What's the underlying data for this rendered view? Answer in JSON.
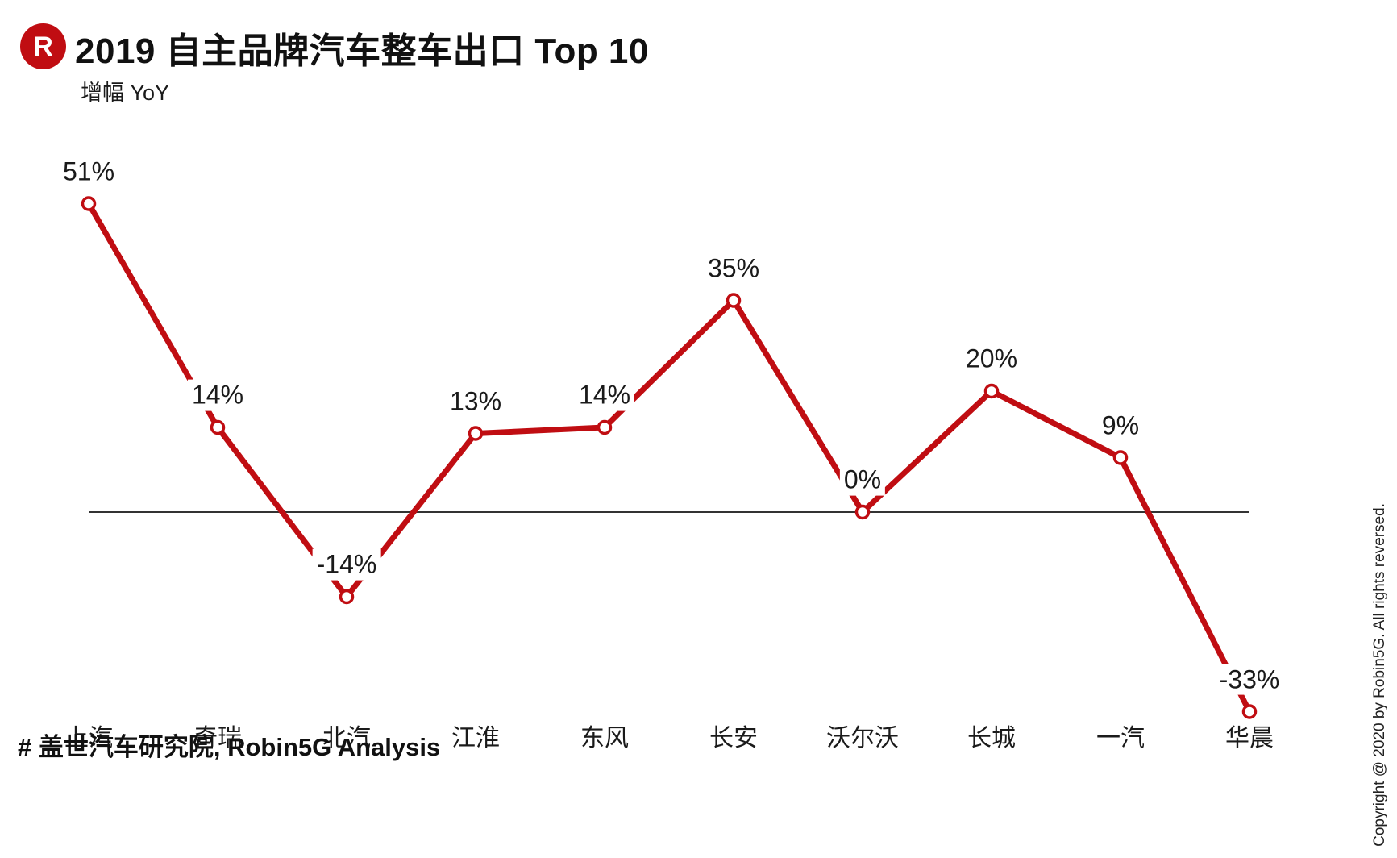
{
  "header": {
    "logo_letter": "R",
    "title": "2019 自主品牌汽车整车出口 Top 10",
    "subtitle": "增幅 YoY"
  },
  "footer": {
    "source": "# 盖世汽车研究院, Robin5G Analysis"
  },
  "copyright": "Copyright @ 2020 by Robin5G. All rights reversed.",
  "colors": {
    "accent_red": "#c00d12",
    "axis": "#333333",
    "label_text": "#1a1a1a",
    "background": "#ffffff"
  },
  "chart_data": {
    "type": "line",
    "title": "2019 自主品牌汽车整车出口 Top 10",
    "subtitle": "增幅 YoY",
    "categories": [
      "上汽",
      "奇瑞",
      "北汽",
      "江淮",
      "东风",
      "长安",
      "沃尔沃",
      "长城",
      "一汽",
      "华晨"
    ],
    "series": [
      {
        "name": "增幅 YoY",
        "values": [
          51,
          14,
          -14,
          13,
          14,
          35,
          0,
          20,
          9,
          -33
        ]
      }
    ],
    "value_labels": [
      "51%",
      "14%",
      "-14%",
      "13%",
      "14%",
      "35%",
      "0%",
      "20%",
      "9%",
      "-33%"
    ],
    "unit": "%",
    "ylim": [
      -40,
      55
    ],
    "baseline": 0,
    "line_color": "#c00d12",
    "marker_style": "open-circle",
    "grid": false,
    "legend": false,
    "yaxis_visible": false,
    "xaxis_line": true
  }
}
